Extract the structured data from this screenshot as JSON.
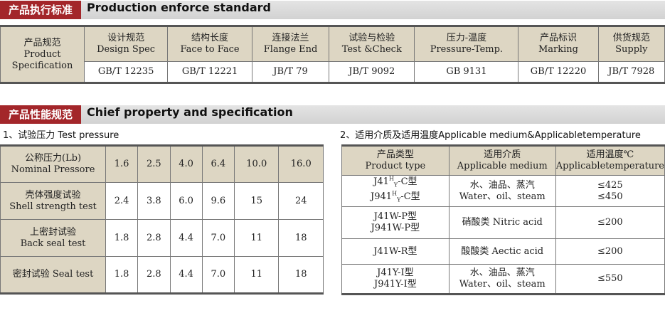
{
  "section1": {
    "cn": "产品执行标准",
    "en": "Production enforce standard"
  },
  "std_table": {
    "row_header": [
      "产品规范",
      "Product",
      "Specification"
    ],
    "columns": [
      {
        "cn": "设计规范",
        "en": "Design Spec",
        "value": "GB/T 12235"
      },
      {
        "cn": "结构长度",
        "en": "Face to Face",
        "value": "GB/T 12221"
      },
      {
        "cn": "连接法兰",
        "en": "Flange End",
        "value": "JB/T 79"
      },
      {
        "cn": "试验与检验",
        "en": "Test &Check",
        "value": "JB/T 9092"
      },
      {
        "cn": "压力-温度",
        "en": "Pressure-Temp.",
        "value": "GB 9131"
      },
      {
        "cn": "产品标识",
        "en": "Marking",
        "value": "GB/T 12220"
      },
      {
        "cn": "供货规范",
        "en": "Supply",
        "value": "JB/T 7928"
      }
    ]
  },
  "section2": {
    "cn": "产品性能规范",
    "en": "Chief property and specification"
  },
  "pressure": {
    "title": "1、试验压力 Test pressure",
    "header": {
      "cn": "公称压力(Lb)",
      "en": "Nominal Pressore",
      "values": [
        "1.6",
        "2.5",
        "4.0",
        "6.4",
        "10.0",
        "16.0"
      ]
    },
    "rows": [
      {
        "cn": "壳体强度试验",
        "en": "Shell strength test",
        "values": [
          "2.4",
          "3.8",
          "6.0",
          "9.6",
          "15",
          "24"
        ]
      },
      {
        "cn": "上密封试验",
        "en": "Back seal test",
        "values": [
          "1.8",
          "2.8",
          "4.4",
          "7.0",
          "11",
          "18"
        ]
      },
      {
        "cn": "密封试验 Seal test",
        "en": "",
        "values": [
          "1.8",
          "2.8",
          "4.4",
          "7.0",
          "11",
          "18"
        ]
      }
    ]
  },
  "medium": {
    "title": "2、适用介质及适用温度Applicable medium&Applicabletemperature",
    "headers": [
      {
        "cn": "产品类型",
        "en": "Product type"
      },
      {
        "cn": "适用介质",
        "en": "Applicable medium"
      },
      {
        "cn": "适用温度℃",
        "en": "Applicabletemperature"
      }
    ],
    "rows": [
      {
        "types": [
          "J41",
          "J941"
        ],
        "suffix": "-C型",
        "sup": "H",
        "sub": "Y",
        "medium_cn": "水、油品、蒸汽",
        "medium_en": "Water、oil、steam",
        "temps": [
          "≤425",
          "≤450"
        ]
      },
      {
        "types": [
          "J41W-P型",
          "J941W-P型"
        ],
        "medium_cn": "硝酸类 Nitric acid",
        "temps": [
          "≤200"
        ]
      },
      {
        "types": [
          "J41W-R型"
        ],
        "medium_cn": "酸酸类 Aectic acid",
        "temps": [
          "≤200"
        ]
      },
      {
        "types": [
          "J41Y-I型",
          "J941Y-I型"
        ],
        "medium_cn": "水、油品、蒸汽",
        "medium_en": "Water、oil、steam",
        "temps": [
          "≤550"
        ]
      }
    ]
  }
}
